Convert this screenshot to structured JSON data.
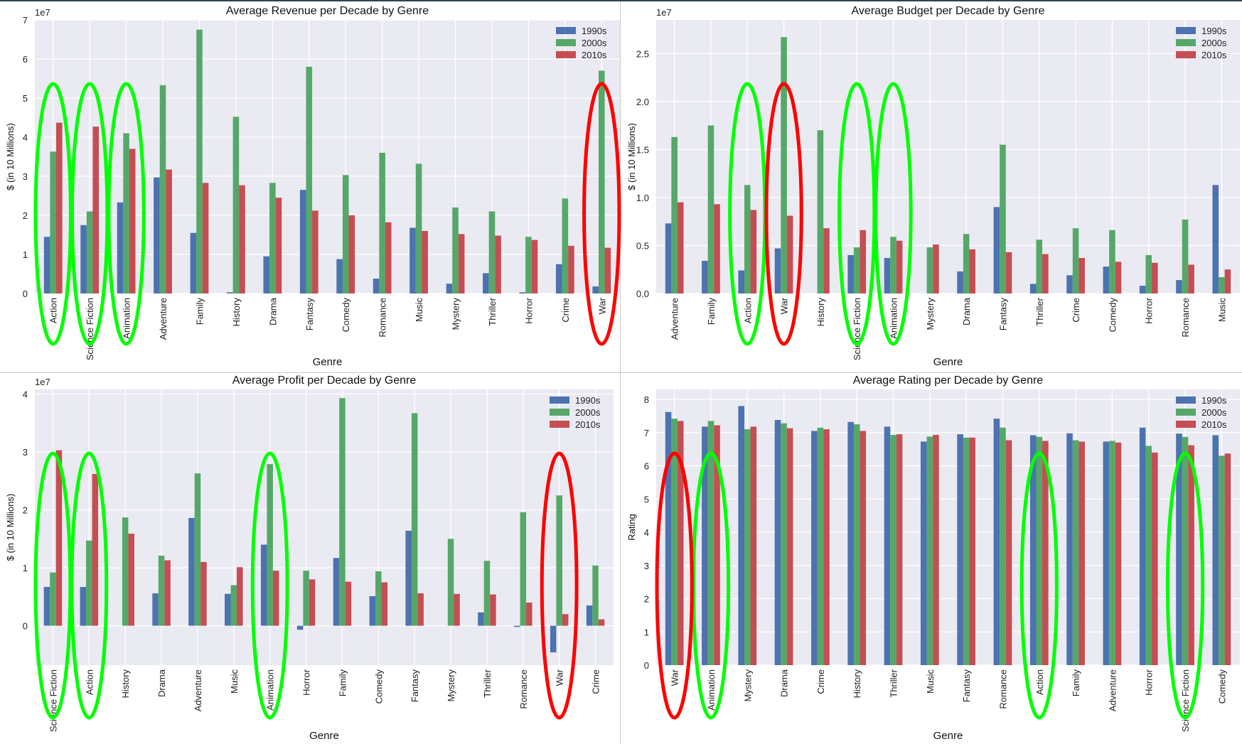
{
  "colors": {
    "s1990": "#4c72b0",
    "s2000": "#55a868",
    "s2010": "#c44e52",
    "plot_bg": "#eaeaf2",
    "grid": "#ffffff",
    "green_marker": "#00ff00",
    "red_marker": "#ff0000"
  },
  "chart_data": [
    {
      "type": "bar",
      "title": "Average Revenue per Decade by Genre",
      "xlabel": "Genre",
      "ylabel": "$ (in 10 Millions)",
      "offset_label": "1e7",
      "ylim": [
        0,
        7
      ],
      "yticks": [
        0,
        1,
        2,
        3,
        4,
        5,
        6,
        7
      ],
      "grid": true,
      "legend": "top-right",
      "categories": [
        "Action",
        "Science Fiction",
        "Animation",
        "Adventure",
        "Family",
        "History",
        "Drama",
        "Fantasy",
        "Comedy",
        "Romance",
        "Music",
        "Mystery",
        "Thriller",
        "Horror",
        "Crime",
        "War"
      ],
      "series": [
        {
          "name": "1990s",
          "values": [
            1.45,
            1.75,
            2.33,
            2.97,
            1.55,
            0.03,
            0.95,
            2.65,
            0.88,
            0.38,
            1.68,
            0.25,
            0.52,
            0.03,
            0.75,
            0.18
          ]
        },
        {
          "name": "2000s",
          "values": [
            3.63,
            2.1,
            4.1,
            5.33,
            6.75,
            4.52,
            2.83,
            5.8,
            3.03,
            3.6,
            3.32,
            2.2,
            2.1,
            1.45,
            2.43,
            5.7
          ]
        },
        {
          "name": "2010s",
          "values": [
            4.37,
            4.27,
            3.7,
            3.17,
            2.83,
            2.77,
            2.45,
            2.12,
            2.0,
            1.82,
            1.6,
            1.52,
            1.48,
            1.37,
            1.22,
            1.17
          ]
        }
      ],
      "highlight_green": [
        "Action",
        "Science Fiction",
        "Animation"
      ],
      "highlight_red": [
        "War"
      ]
    },
    {
      "type": "bar",
      "title": "Average Budget per Decade by Genre",
      "xlabel": "Genre",
      "ylabel": "$ (in 10 Millions)",
      "offset_label": "1e7",
      "ylim": [
        0,
        2.85
      ],
      "yticks": [
        0.0,
        0.5,
        1.0,
        1.5,
        2.0,
        2.5
      ],
      "ytick_labels": [
        "0.0",
        "0.5",
        "1.0",
        "1.5",
        "2.0",
        "2.5"
      ],
      "grid": true,
      "legend": "top-right",
      "categories": [
        "Adventure",
        "Family",
        "Action",
        "War",
        "History",
        "Science Fiction",
        "Animation",
        "Mystery",
        "Drama",
        "Fantasy",
        "Thriller",
        "Crime",
        "Comedy",
        "Horror",
        "Romance",
        "Music"
      ],
      "series": [
        {
          "name": "1990s",
          "values": [
            0.73,
            0.34,
            0.24,
            0.47,
            0,
            0.4,
            0.37,
            0,
            0.23,
            0.9,
            0.1,
            0.19,
            0.28,
            0.08,
            0.14,
            1.13
          ]
        },
        {
          "name": "2000s",
          "values": [
            1.63,
            1.75,
            1.13,
            2.67,
            1.7,
            0.48,
            0.59,
            0.48,
            0.62,
            1.55,
            0.56,
            0.68,
            0.66,
            0.4,
            0.77,
            0.17
          ]
        },
        {
          "name": "2010s",
          "values": [
            0.95,
            0.93,
            0.87,
            0.81,
            0.68,
            0.66,
            0.55,
            0.51,
            0.46,
            0.43,
            0.41,
            0.37,
            0.33,
            0.32,
            0.3,
            0.25
          ]
        }
      ],
      "highlight_green": [
        "Action",
        "Science Fiction",
        "Animation"
      ],
      "highlight_red": [
        "War"
      ]
    },
    {
      "type": "bar",
      "title": "Average Profit per Decade by Genre",
      "xlabel": "Genre",
      "ylabel": "$ (in 10 Millions)",
      "offset_label": "1e7",
      "ylim": [
        -0.68,
        4.08
      ],
      "yticks": [
        0,
        1,
        2,
        3,
        4
      ],
      "grid": true,
      "legend": "top-right",
      "categories": [
        "Science Fiction",
        "Action",
        "History",
        "Drama",
        "Adventure",
        "Music",
        "Animation",
        "Horror",
        "Family",
        "Comedy",
        "Fantasy",
        "Mystery",
        "Thriller",
        "Romance",
        "War",
        "Crime"
      ],
      "series": [
        {
          "name": "1990s",
          "values": [
            0.67,
            0.67,
            0,
            0.56,
            1.86,
            0.55,
            1.4,
            -0.07,
            1.17,
            0.51,
            1.64,
            0,
            0.23,
            -0.02,
            -0.46,
            0.35
          ]
        },
        {
          "name": "2000s",
          "values": [
            0.92,
            1.47,
            1.87,
            1.21,
            2.63,
            0.7,
            2.79,
            0.95,
            3.93,
            0.94,
            3.67,
            1.5,
            1.12,
            1.96,
            2.25,
            1.04
          ]
        },
        {
          "name": "2010s",
          "values": [
            3.03,
            2.62,
            1.59,
            1.13,
            1.1,
            1.01,
            0.95,
            0.8,
            0.76,
            0.75,
            0.56,
            0.55,
            0.54,
            0.4,
            0.2,
            0.11
          ]
        }
      ],
      "highlight_green": [
        "Science Fiction",
        "Action",
        "Animation"
      ],
      "highlight_red": [
        "War"
      ]
    },
    {
      "type": "bar",
      "title": "Average Rating per Decade by Genre",
      "xlabel": "Genre",
      "ylabel": "Rating",
      "ylim": [
        0,
        8.3
      ],
      "yticks": [
        0,
        1,
        2,
        3,
        4,
        5,
        6,
        7,
        8
      ],
      "grid": true,
      "legend": "top-right",
      "categories": [
        "War",
        "Animation",
        "Mystery",
        "Drama",
        "Crime",
        "History",
        "Thriller",
        "Music",
        "Fantasy",
        "Romance",
        "Action",
        "Family",
        "Adventure",
        "Horror",
        "Science Fiction",
        "Comedy"
      ],
      "series": [
        {
          "name": "1990s",
          "values": [
            7.62,
            7.18,
            7.8,
            7.38,
            7.05,
            7.32,
            7.18,
            6.73,
            6.95,
            7.42,
            6.92,
            6.98,
            6.73,
            7.15,
            6.97,
            6.92
          ]
        },
        {
          "name": "2000s",
          "values": [
            7.42,
            7.35,
            7.1,
            7.28,
            7.15,
            7.25,
            6.93,
            6.88,
            6.85,
            7.15,
            6.87,
            6.77,
            6.75,
            6.6,
            6.87,
            6.3
          ]
        },
        {
          "name": "2010s",
          "values": [
            7.35,
            7.22,
            7.18,
            7.13,
            7.1,
            7.05,
            6.95,
            6.93,
            6.85,
            6.77,
            6.75,
            6.73,
            6.7,
            6.4,
            6.62,
            6.37
          ]
        }
      ],
      "highlight_green": [
        "Animation",
        "Action",
        "Science Fiction"
      ],
      "highlight_red": [
        "War"
      ]
    }
  ]
}
